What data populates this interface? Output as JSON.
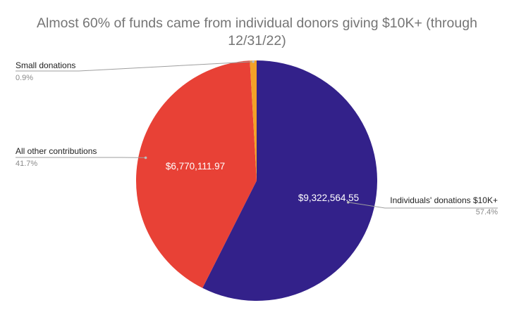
{
  "chart_data": {
    "type": "pie",
    "title": "Almost 60% of funds came from individual donors giving $10K+ (through 12/31/22)",
    "title_lines": [
      "Almost 60% of funds came from individual donors giving $10K+ (through",
      "12/31/22)"
    ],
    "slices": [
      {
        "label": "Individuals' donations $10K+",
        "value": 9322564.55,
        "value_label": "$9,322,564.55",
        "percent": 57.4,
        "percent_label": "57.4%",
        "color": "#33218a"
      },
      {
        "label": "All other contributions",
        "value": 6770111.97,
        "value_label": "$6,770,111.97",
        "percent": 41.7,
        "percent_label": "41.7%",
        "color": "#e84136"
      },
      {
        "label": "Small donations",
        "value": 146000,
        "value_label": "",
        "percent": 0.9,
        "percent_label": "0.9%",
        "color": "#f3a127"
      }
    ],
    "start_angle_deg": 0,
    "direction": "clockwise",
    "legend": "none"
  }
}
